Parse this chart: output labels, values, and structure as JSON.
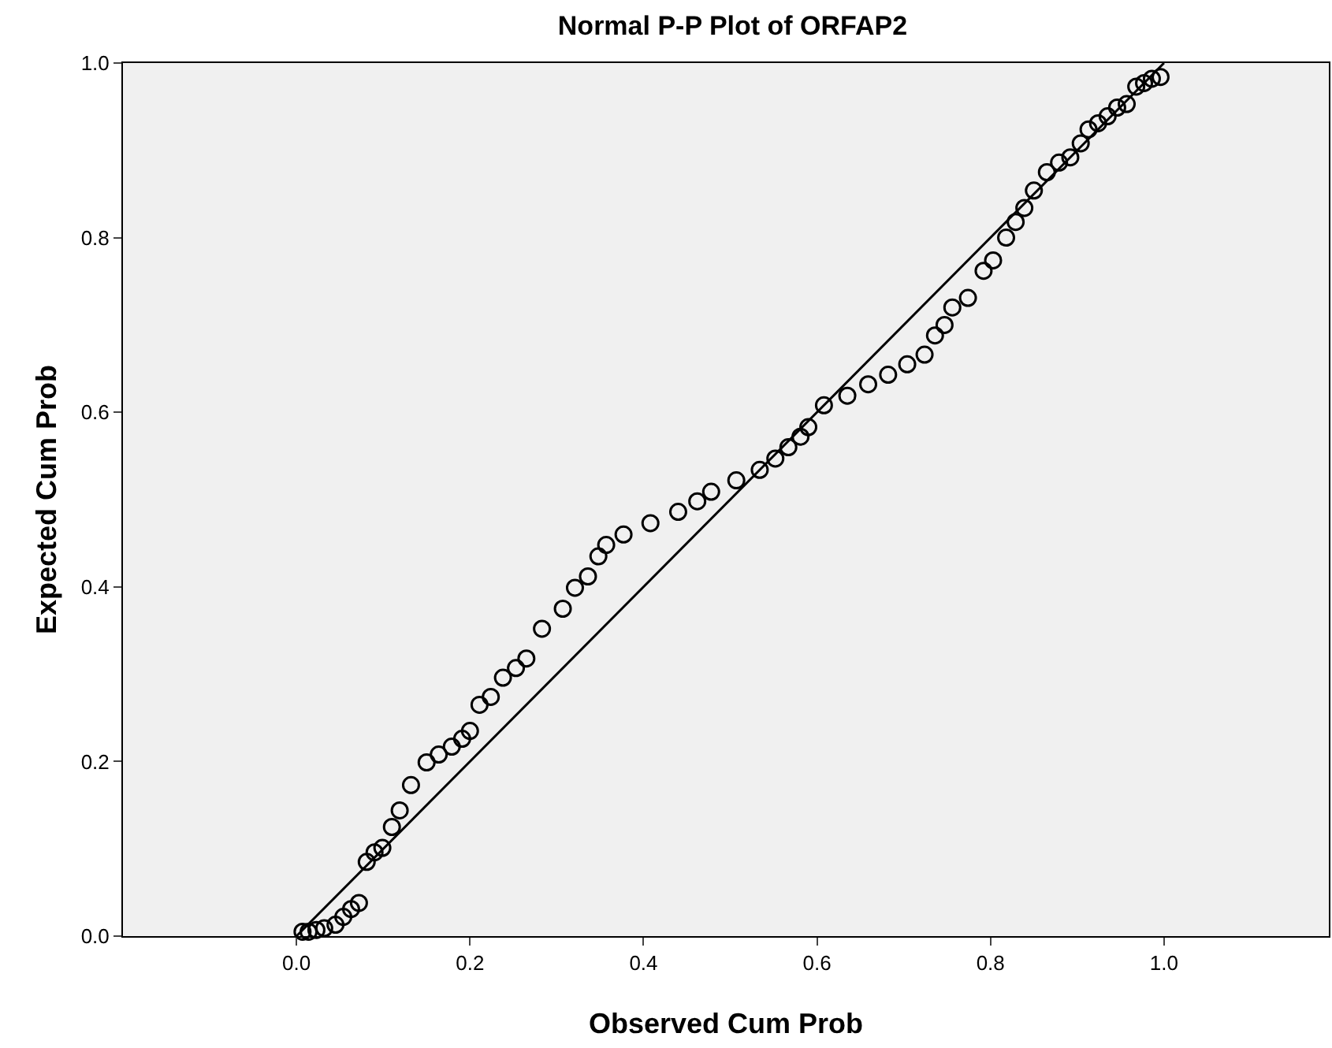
{
  "chart_data": {
    "type": "scatter",
    "title": "Normal P-P Plot of ORFAP2",
    "xlabel": "Observed Cum Prob",
    "ylabel": "Expected Cum Prob",
    "xlim": [
      -0.2,
      1.19
    ],
    "ylim": [
      0,
      1
    ],
    "xticks": [
      {
        "value": 0,
        "label": "0.0"
      },
      {
        "value": 0.2,
        "label": "0.2"
      },
      {
        "value": 0.4,
        "label": "0.4"
      },
      {
        "value": 0.6,
        "label": "0.6"
      },
      {
        "value": 0.8,
        "label": "0.8"
      },
      {
        "value": 1,
        "label": "1.0"
      }
    ],
    "yticks": [
      {
        "value": 0,
        "label": "0.0"
      },
      {
        "value": 0.2,
        "label": "0.2"
      },
      {
        "value": 0.4,
        "label": "0.4"
      },
      {
        "value": 0.6,
        "label": "0.6"
      },
      {
        "value": 0.8,
        "label": "0.8"
      },
      {
        "value": 1,
        "label": "1.0"
      }
    ],
    "grid": false,
    "legend": false,
    "series": [
      {
        "marker": "circle",
        "color": "#000000",
        "x": [
          0.007,
          0.014,
          0.023,
          0.032,
          0.045,
          0.054,
          0.063,
          0.072,
          0.081,
          0.09,
          0.099,
          0.11,
          0.119,
          0.132,
          0.15,
          0.164,
          0.179,
          0.191,
          0.2,
          0.211,
          0.224,
          0.238,
          0.253,
          0.265,
          0.283,
          0.307,
          0.321,
          0.336,
          0.348,
          0.357,
          0.377,
          0.408,
          0.44,
          0.462,
          0.478,
          0.507,
          0.534,
          0.552,
          0.567,
          0.581,
          0.59,
          0.608,
          0.635,
          0.659,
          0.682,
          0.704,
          0.724,
          0.736,
          0.747,
          0.756,
          0.774,
          0.792,
          0.803,
          0.818,
          0.829,
          0.839,
          0.85,
          0.865,
          0.879,
          0.892,
          0.904,
          0.913,
          0.924,
          0.935,
          0.946,
          0.957,
          0.968,
          0.977,
          0.986,
          0.996
        ],
        "values": [
          0.005,
          0.005,
          0.007,
          0.009,
          0.013,
          0.022,
          0.031,
          0.038,
          0.085,
          0.096,
          0.101,
          0.125,
          0.144,
          0.173,
          0.199,
          0.208,
          0.217,
          0.226,
          0.235,
          0.265,
          0.274,
          0.296,
          0.307,
          0.318,
          0.352,
          0.375,
          0.399,
          0.412,
          0.435,
          0.448,
          0.46,
          0.473,
          0.486,
          0.498,
          0.509,
          0.522,
          0.534,
          0.547,
          0.56,
          0.572,
          0.583,
          0.608,
          0.619,
          0.632,
          0.643,
          0.655,
          0.666,
          0.688,
          0.7,
          0.72,
          0.731,
          0.762,
          0.774,
          0.8,
          0.818,
          0.834,
          0.854,
          0.875,
          0.886,
          0.892,
          0.908,
          0.924,
          0.931,
          0.939,
          0.949,
          0.953,
          0.973,
          0.977,
          0.982,
          0.984
        ]
      },
      {
        "type": "line",
        "marker": "none",
        "color": "#000000",
        "x": [
          0,
          1
        ],
        "values": [
          0,
          1
        ],
        "line_style": "solid"
      }
    ]
  }
}
